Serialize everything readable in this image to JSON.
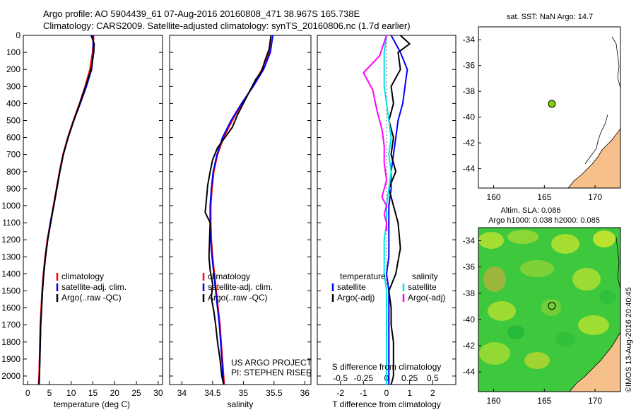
{
  "header": {
    "line1": "Argo profile: AO 5904439_61 07-Aug-2016 20160808_471 38.967S 165.738E",
    "line2": "Climatology: CARS2009. Satellite-adjusted climatology: synTS_20160806.nc (1.7d earlier)"
  },
  "credit": "©IMOS 13-Aug-2016 20:40:45",
  "colors": {
    "climatology": "#ff0000",
    "satellite": "#0000ff",
    "argo": "#000000",
    "salinity_satellite": "#00e5e5",
    "salinity_argo": "#ff00ff",
    "land": "#f5c08a",
    "float_marker": "#7fd000"
  },
  "chart_data": [
    {
      "type": "line",
      "name": "temperature",
      "xlabel": "temperature (deg C)",
      "ylabel": "",
      "xlim": [
        -1,
        31
      ],
      "ylim": [
        2050,
        0
      ],
      "xticks": [
        0,
        5,
        10,
        15,
        20,
        25,
        30
      ],
      "yticks": [
        0,
        100,
        200,
        300,
        400,
        500,
        600,
        700,
        800,
        900,
        1000,
        1100,
        1200,
        1300,
        1400,
        1500,
        1600,
        1700,
        1800,
        1900,
        2000
      ],
      "legend": {
        "placement": "lower-center",
        "entries": [
          "climatology",
          "satellite-adj. clim.",
          "Argo(..raw -QC)"
        ]
      },
      "series": [
        {
          "name": "climatology",
          "color": "#ff0000",
          "x": [
            15.2,
            14.9,
            14.3,
            13.2,
            11.9,
            10.5,
            9.2,
            8.1,
            7.3,
            6.6,
            5.9,
            5.2,
            4.5,
            4.0,
            3.6,
            3.3,
            3.1,
            2.9,
            2.8,
            2.7,
            2.6,
            2.5
          ],
          "y": [
            0,
            100,
            200,
            300,
            400,
            500,
            600,
            700,
            800,
            900,
            1000,
            1100,
            1200,
            1300,
            1400,
            1500,
            1600,
            1700,
            1800,
            1900,
            2000,
            2050
          ]
        },
        {
          "name": "satellite-adj. clim.",
          "color": "#0000ff",
          "x": [
            15.0,
            15.1,
            14.7,
            13.5,
            12.1,
            10.6,
            9.3,
            8.2,
            7.4,
            6.7,
            6.0,
            5.2,
            4.6,
            4.1,
            3.7,
            3.4,
            3.2,
            3.0,
            2.9,
            2.8,
            2.7,
            2.6
          ],
          "y": [
            0,
            100,
            200,
            300,
            400,
            500,
            600,
            700,
            800,
            900,
            1000,
            1100,
            1200,
            1300,
            1400,
            1500,
            1600,
            1700,
            1800,
            1900,
            2000,
            2050
          ]
        },
        {
          "name": "Argo(..raw -QC)",
          "color": "#000000",
          "x": [
            14.6,
            15.3,
            15.2,
            14.6,
            13.3,
            12.0,
            10.6,
            9.3,
            8.2,
            7.4,
            6.7,
            6.0,
            5.3,
            4.6,
            4.1,
            3.7,
            3.4,
            3.2,
            3.0,
            2.9,
            2.8,
            2.7,
            2.6
          ],
          "y": [
            0,
            50,
            100,
            200,
            300,
            400,
            500,
            600,
            700,
            800,
            900,
            1000,
            1100,
            1200,
            1300,
            1400,
            1500,
            1600,
            1700,
            1800,
            1900,
            2000,
            2050
          ]
        }
      ]
    },
    {
      "type": "line",
      "name": "salinity",
      "xlabel": "salinity",
      "ylabel": "",
      "xlim": [
        33.8,
        36.1
      ],
      "ylim": [
        2050,
        0
      ],
      "xticks": [
        34,
        34.5,
        35,
        35.5,
        36
      ],
      "legend": {
        "placement": "lower-center",
        "entries": [
          "climatology",
          "satellite-adj. clim.",
          "Argo(..raw -QC)"
        ]
      },
      "annotation": [
        "US ARGO PROJECT",
        "PI: STEPHEN RISER"
      ],
      "series": [
        {
          "name": "climatology",
          "color": "#ff0000",
          "x": [
            35.45,
            35.42,
            35.3,
            35.15,
            34.98,
            34.82,
            34.68,
            34.58,
            34.52,
            34.49,
            34.47,
            34.47,
            34.48,
            34.5,
            34.53,
            34.56,
            34.59,
            34.62,
            34.64,
            34.66,
            34.68,
            34.69
          ],
          "y": [
            0,
            100,
            200,
            300,
            400,
            500,
            600,
            700,
            800,
            900,
            1000,
            1100,
            1200,
            1300,
            1400,
            1500,
            1600,
            1700,
            1800,
            1900,
            2000,
            2050
          ]
        },
        {
          "name": "satellite-adj. clim.",
          "color": "#0000ff",
          "x": [
            35.48,
            35.44,
            35.33,
            35.16,
            34.97,
            34.8,
            34.66,
            34.57,
            34.51,
            34.48,
            34.46,
            34.46,
            34.47,
            34.49,
            34.52,
            34.55,
            34.58,
            34.61,
            34.63,
            34.65,
            34.67,
            34.68
          ],
          "y": [
            0,
            100,
            200,
            300,
            400,
            500,
            600,
            700,
            800,
            900,
            1000,
            1100,
            1200,
            1300,
            1400,
            1500,
            1600,
            1700,
            1800,
            1900,
            2000,
            2050
          ]
        },
        {
          "name": "Argo(..raw -QC)",
          "color": "#000000",
          "x": [
            35.45,
            35.42,
            35.35,
            35.3,
            35.2,
            35.1,
            35.0,
            34.9,
            34.82,
            34.7,
            34.58,
            34.5,
            34.46,
            34.42,
            34.4,
            34.38,
            34.46,
            34.44,
            34.46,
            34.5,
            34.48,
            34.52,
            34.55,
            34.58,
            34.62,
            34.65,
            34.68
          ],
          "y": [
            0,
            80,
            150,
            210,
            260,
            330,
            400,
            470,
            540,
            600,
            660,
            730,
            800,
            880,
            960,
            1040,
            1100,
            1300,
            1380,
            1460,
            1540,
            1620,
            1700,
            1800,
            1900,
            2000,
            2050
          ]
        }
      ]
    },
    {
      "type": "line",
      "name": "difference",
      "xlabel": "T difference from climatology",
      "xlabel_top": "S difference from climatology",
      "xlim": [
        -3,
        3
      ],
      "ylim": [
        2050,
        0
      ],
      "xticks": [
        -2,
        -1,
        0,
        1,
        2
      ],
      "xticklabels_top": [
        "-0.5",
        "-0.25",
        "0",
        "0.25",
        "0.5"
      ],
      "legend": {
        "placement": "lower-center",
        "temperature_title": "temperature",
        "salinity_title": "salinity",
        "entries_temperature": [
          "satellite",
          "Argo(-adj)"
        ],
        "entries_salinity": [
          "satellite",
          "Argo(-adj)"
        ]
      },
      "series": [
        {
          "name": "temperature satellite",
          "color": "#0000ff",
          "x": [
            0.2,
            0.6,
            0.9,
            0.8,
            0.7,
            0.5,
            0.4,
            0.3,
            0.2,
            0.2,
            0.1,
            0.1,
            0.1,
            0.1,
            0.0,
            0.1,
            0.1,
            0.1,
            0.1,
            0.1,
            0.1,
            0.1
          ],
          "y": [
            0,
            100,
            200,
            300,
            400,
            500,
            600,
            700,
            800,
            900,
            1000,
            1100,
            1200,
            1300,
            1400,
            1500,
            1600,
            1700,
            1800,
            1900,
            2000,
            2050
          ]
        },
        {
          "name": "temperature Argo(-adj)",
          "color": "#000000",
          "x": [
            0.6,
            1.0,
            0.5,
            0.6,
            0.2,
            0.3,
            0.1,
            0.3,
            0.2,
            0.4,
            0.1,
            0.3,
            0.5,
            0.6,
            0.4,
            0.1,
            0.2,
            0.2,
            0.3,
            0.3,
            0.3,
            0.2
          ],
          "y": [
            0,
            50,
            100,
            200,
            300,
            400,
            500,
            600,
            700,
            800,
            900,
            1000,
            1100,
            1250,
            1400,
            1500,
            1600,
            1700,
            1800,
            1900,
            2000,
            2050
          ]
        },
        {
          "name": "salinity satellite",
          "color": "#00e5e5",
          "x": [
            0.0,
            -0.1,
            -0.1,
            -0.1,
            0.0,
            0.1,
            0.2,
            0.1,
            0.2,
            0.1,
            0.0,
            0.0,
            -0.1,
            -0.1,
            -0.1,
            0.0,
            0.0,
            0.0,
            0.0,
            0.0,
            0.0,
            0.0
          ],
          "y": [
            0,
            100,
            200,
            300,
            400,
            500,
            600,
            700,
            800,
            900,
            1000,
            1100,
            1200,
            1300,
            1400,
            1500,
            1600,
            1700,
            1800,
            1900,
            2000,
            2050
          ]
        },
        {
          "name": "salinity Argo(-adj)",
          "color": "#ff00ff",
          "x": [
            0.0,
            -0.3,
            -1.0,
            -0.6,
            -0.4,
            -0.2,
            -0.1,
            -0.1,
            0.0,
            -0.2,
            0.0,
            -0.1,
            0.0,
            0.0
          ],
          "y": [
            0,
            120,
            220,
            320,
            450,
            550,
            650,
            750,
            850,
            950,
            1000,
            1050,
            1100,
            1150
          ]
        }
      ]
    },
    {
      "type": "scatter",
      "name": "sst-map",
      "title": "sat. SST: NaN  Argo: 14.7",
      "xlim": [
        158.5,
        172.5
      ],
      "ylim": [
        -45.5,
        -33
      ],
      "xticks": [
        160,
        165,
        170
      ],
      "yticks": [
        -34,
        -36,
        -38,
        -40,
        -42,
        -44
      ],
      "points": [
        {
          "x": 165.738,
          "y": -38.967
        }
      ]
    },
    {
      "type": "heatmap",
      "name": "sla-map",
      "title_line1": "Altim. SLA: 0.086",
      "title_line2": "Argo h1000: 0.038 h2000: 0.085",
      "xlim": [
        158.5,
        172.5
      ],
      "ylim": [
        -45.5,
        -33
      ],
      "xticks": [
        160,
        165,
        170
      ],
      "yticks": [
        -34,
        -36,
        -38,
        -40,
        -42,
        -44
      ],
      "points": [
        {
          "x": 165.738,
          "y": -38.967
        }
      ]
    }
  ]
}
